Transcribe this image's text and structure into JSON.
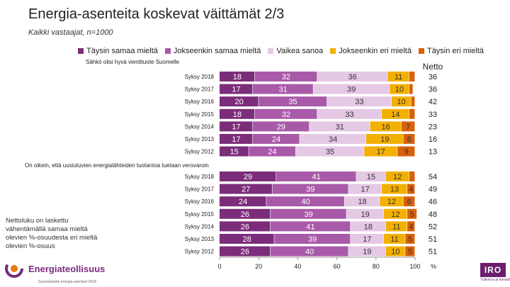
{
  "title": "Energia-asenteita koskevat väittämät 2/3",
  "subtitle": "Kaikki vastaajat, n=1000",
  "legend": [
    {
      "label": "Täysin samaa mieltä",
      "color": "#7b2d7a"
    },
    {
      "label": "Jokseenkin samaa mieltä",
      "color": "#a85aa8"
    },
    {
      "label": "Vaikea sanoa",
      "color": "#e4c8e4"
    },
    {
      "label": "Jokseenkin eri mieltä",
      "color": "#f2b000"
    },
    {
      "label": "Täysin eri mieltä",
      "color": "#d9600c"
    }
  ],
  "net_header": "Netto",
  "note": "Nettoluku on laskettu vähentämällä samaa mieltä olevien %-osuudesta eri mieltä olevien %-osuus",
  "logo_left": {
    "name": "Energiateollisuus",
    "sub": "Suomalaisten energia-asenteet 2018"
  },
  "logo_right": {
    "name": "IRO",
    "sub": "Tutkimus ja konsultointi"
  },
  "chart_data": {
    "type": "bar",
    "orientation": "horizontal-stacked",
    "xlim": [
      0,
      100
    ],
    "xticks": [
      0,
      20,
      40,
      60,
      80,
      100
    ],
    "xunit": "%",
    "series_names": [
      "Täysin samaa mieltä",
      "Jokseenkin samaa mieltä",
      "Vaikea sanoa",
      "Jokseenkin eri mieltä",
      "Täysin eri mieltä"
    ],
    "groups": [
      {
        "label": "Sähkö olisi hyvä vientituote Suomelle",
        "rows": [
          {
            "label": "Syksy 2018",
            "values": [
              18,
              32,
              36,
              11,
              3
            ],
            "net": 36
          },
          {
            "label": "Syksy 2017",
            "values": [
              17,
              31,
              39,
              10,
              2
            ],
            "net": 36
          },
          {
            "label": "Syksy 2016",
            "values": [
              20,
              35,
              33,
              10,
              2
            ],
            "net": 42
          },
          {
            "label": "Syksy 2015",
            "values": [
              18,
              32,
              33,
              14,
              3
            ],
            "net": 33
          },
          {
            "label": "Syksy 2014",
            "values": [
              17,
              29,
              31,
              16,
              7
            ],
            "net": 23
          },
          {
            "label": "Syksy 2013",
            "values": [
              17,
              24,
              34,
              19,
              6
            ],
            "net": 16
          },
          {
            "label": "Syksy 2012",
            "values": [
              15,
              24,
              35,
              17,
              9
            ],
            "net": 13
          }
        ]
      },
      {
        "label": "On oikein, että uusiutuvien energialähteiden tuotantoa tuetaan verovaroin",
        "rows": [
          {
            "label": "Syksy 2018",
            "values": [
              29,
              41,
              15,
              12,
              3
            ],
            "net": 54
          },
          {
            "label": "Syksy 2017",
            "values": [
              27,
              39,
              17,
              13,
              4
            ],
            "net": 49
          },
          {
            "label": "Syksy 2016",
            "values": [
              24,
              40,
              18,
              12,
              6
            ],
            "net": 46
          },
          {
            "label": "Syksy 2015",
            "values": [
              26,
              39,
              19,
              12,
              5
            ],
            "net": 48
          },
          {
            "label": "Syksy 2014",
            "values": [
              26,
              41,
              18,
              11,
              4
            ],
            "net": 52
          },
          {
            "label": "Syksy 2013",
            "values": [
              28,
              39,
              17,
              11,
              5
            ],
            "net": 51
          },
          {
            "label": "Syksy 2012",
            "values": [
              26,
              40,
              19,
              10,
              5
            ],
            "net": 51
          }
        ]
      }
    ]
  }
}
